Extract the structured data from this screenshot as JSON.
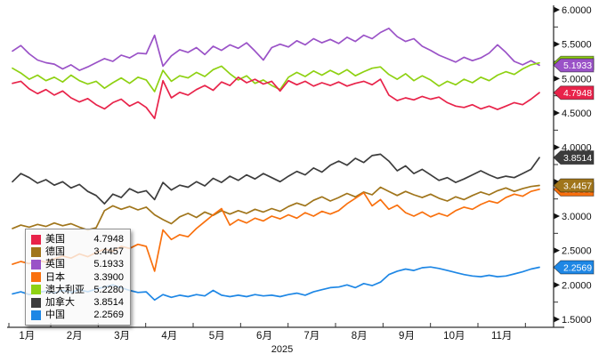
{
  "chart_data": {
    "type": "line",
    "title": "",
    "grid": false,
    "legend_position": "bottom-left",
    "x_axis": {
      "year_label": "2025",
      "month_labels": [
        "1月",
        "2月",
        "3月",
        "4月",
        "5月",
        "6月",
        "7月",
        "8月",
        "9月",
        "10月",
        "11月"
      ]
    },
    "y_axis": {
      "min": 1.5,
      "max": 6.0,
      "major_values": [
        6.0,
        5.5,
        5.0,
        4.5,
        4.0,
        3.5,
        3.0,
        2.5,
        2.0,
        1.5
      ],
      "major_tick_labels": [
        "6.0000",
        "5.5000",
        "5.0000",
        "4.5000",
        "4.0000",
        "3.5000",
        "3.0000",
        "2.5000",
        "2.0000",
        "1.5000"
      ],
      "minor_values": [
        5.75,
        5.25,
        4.75,
        4.25,
        3.75,
        3.25,
        2.75,
        2.25,
        1.75
      ]
    },
    "series": [
      {
        "id": "us",
        "name": "美国",
        "color": "#e8234a",
        "value_label": "4.7948",
        "last_value": 4.7948,
        "values": [
          4.93,
          4.96,
          4.85,
          4.78,
          4.84,
          4.76,
          4.82,
          4.72,
          4.66,
          4.71,
          4.62,
          4.56,
          4.65,
          4.7,
          4.6,
          4.66,
          4.58,
          4.42,
          4.97,
          4.72,
          4.8,
          4.76,
          4.84,
          4.9,
          4.83,
          4.95,
          4.9,
          5.02,
          4.94,
          4.99,
          4.92,
          4.96,
          4.82,
          4.97,
          4.91,
          4.96,
          4.89,
          4.94,
          4.9,
          4.95,
          4.89,
          4.93,
          4.96,
          4.91,
          4.99,
          4.76,
          4.68,
          4.72,
          4.69,
          4.74,
          4.7,
          4.73,
          4.65,
          4.6,
          4.58,
          4.62,
          4.56,
          4.6,
          4.55,
          4.6,
          4.65,
          4.62,
          4.7,
          4.7948
        ]
      },
      {
        "id": "de",
        "name": "德国",
        "color": "#a0751b",
        "value_label": "3.4457",
        "last_value": 3.4457,
        "values": [
          2.82,
          2.87,
          2.84,
          2.88,
          2.85,
          2.9,
          2.86,
          2.89,
          2.84,
          2.8,
          2.83,
          3.08,
          3.15,
          3.1,
          3.14,
          3.09,
          3.13,
          3.02,
          2.95,
          2.89,
          2.99,
          3.04,
          2.98,
          3.06,
          3.01,
          3.08,
          3.03,
          3.08,
          3.04,
          3.1,
          3.06,
          3.11,
          3.07,
          3.14,
          3.19,
          3.15,
          3.23,
          3.28,
          3.22,
          3.27,
          3.33,
          3.28,
          3.35,
          3.31,
          3.42,
          3.36,
          3.3,
          3.36,
          3.31,
          3.27,
          3.32,
          3.26,
          3.22,
          3.28,
          3.24,
          3.3,
          3.35,
          3.31,
          3.37,
          3.41,
          3.36,
          3.4,
          3.43,
          3.4457
        ]
      },
      {
        "id": "uk",
        "name": "英国",
        "color": "#9a52c7",
        "value_label": "5.1933",
        "last_value": 5.1933,
        "values": [
          5.4,
          5.48,
          5.36,
          5.27,
          5.23,
          5.21,
          5.14,
          5.2,
          5.12,
          5.17,
          5.23,
          5.29,
          5.25,
          5.34,
          5.3,
          5.37,
          5.36,
          5.63,
          5.18,
          5.33,
          5.42,
          5.38,
          5.45,
          5.35,
          5.47,
          5.41,
          5.49,
          5.44,
          5.52,
          5.4,
          5.27,
          5.45,
          5.5,
          5.46,
          5.55,
          5.49,
          5.58,
          5.52,
          5.57,
          5.51,
          5.6,
          5.54,
          5.63,
          5.58,
          5.67,
          5.73,
          5.61,
          5.54,
          5.58,
          5.47,
          5.41,
          5.34,
          5.29,
          5.24,
          5.31,
          5.26,
          5.3,
          5.37,
          5.49,
          5.38,
          5.25,
          5.2,
          5.26,
          5.1933
        ]
      },
      {
        "id": "jp",
        "name": "日本",
        "color": "#f9700d",
        "value_label": "3.3900",
        "last_value": 3.39,
        "values": [
          2.3,
          2.34,
          2.31,
          2.36,
          2.33,
          2.38,
          2.42,
          2.39,
          2.45,
          2.41,
          2.47,
          2.52,
          2.49,
          2.56,
          2.53,
          2.59,
          2.56,
          2.2,
          2.8,
          2.66,
          2.73,
          2.7,
          2.82,
          2.92,
          3.02,
          3.11,
          2.87,
          2.95,
          2.9,
          2.97,
          2.93,
          3.0,
          2.96,
          3.02,
          2.97,
          3.05,
          3.0,
          3.07,
          3.03,
          3.08,
          3.18,
          3.26,
          3.34,
          3.15,
          3.24,
          3.1,
          3.16,
          3.05,
          3.0,
          3.06,
          2.99,
          3.04,
          3.0,
          3.08,
          3.13,
          3.1,
          3.17,
          3.22,
          3.19,
          3.27,
          3.32,
          3.29,
          3.36,
          3.39
        ]
      },
      {
        "id": "au",
        "name": "澳大利亚",
        "color": "#8ed112",
        "value_label": "5.2280",
        "last_value": 5.228,
        "values": [
          5.15,
          5.08,
          4.99,
          5.05,
          4.97,
          5.02,
          4.95,
          5.05,
          4.97,
          4.92,
          4.96,
          4.86,
          4.94,
          5.01,
          4.93,
          5.02,
          4.98,
          4.81,
          5.12,
          4.96,
          5.04,
          5.01,
          5.09,
          5.03,
          5.13,
          5.18,
          5.07,
          4.98,
          5.04,
          4.93,
          4.98,
          4.9,
          4.84,
          5.02,
          5.09,
          5.03,
          5.11,
          5.05,
          5.12,
          5.06,
          5.13,
          5.04,
          5.1,
          5.15,
          5.17,
          5.06,
          4.99,
          5.07,
          4.97,
          5.04,
          4.98,
          4.89,
          4.96,
          4.91,
          4.99,
          4.94,
          5.02,
          4.97,
          5.05,
          5.1,
          5.06,
          5.14,
          5.2,
          5.228
        ]
      },
      {
        "id": "ca",
        "name": "加拿大",
        "color": "#3c3c3c",
        "value_label": "3.8514",
        "last_value": 3.8514,
        "values": [
          3.5,
          3.62,
          3.56,
          3.48,
          3.53,
          3.45,
          3.5,
          3.41,
          3.46,
          3.36,
          3.3,
          3.18,
          3.32,
          3.27,
          3.4,
          3.34,
          3.37,
          3.24,
          3.49,
          3.38,
          3.45,
          3.42,
          3.5,
          3.44,
          3.55,
          3.49,
          3.58,
          3.52,
          3.6,
          3.54,
          3.62,
          3.56,
          3.5,
          3.58,
          3.65,
          3.6,
          3.7,
          3.64,
          3.74,
          3.8,
          3.74,
          3.84,
          3.78,
          3.88,
          3.9,
          3.8,
          3.66,
          3.73,
          3.62,
          3.68,
          3.6,
          3.52,
          3.56,
          3.49,
          3.54,
          3.6,
          3.66,
          3.6,
          3.55,
          3.58,
          3.56,
          3.62,
          3.68,
          3.8514
        ]
      },
      {
        "id": "cn",
        "name": "中国",
        "color": "#1e87e5",
        "value_label": "2.2569",
        "last_value": 2.2569,
        "values": [
          1.87,
          1.9,
          1.86,
          1.89,
          1.91,
          1.88,
          1.92,
          1.89,
          1.93,
          1.9,
          1.94,
          1.97,
          2.0,
          1.96,
          1.92,
          1.89,
          1.9,
          1.78,
          1.86,
          1.82,
          1.85,
          1.83,
          1.86,
          1.84,
          1.92,
          1.85,
          1.83,
          1.85,
          1.83,
          1.86,
          1.84,
          1.85,
          1.83,
          1.86,
          1.88,
          1.85,
          1.9,
          1.93,
          1.96,
          1.97,
          2.0,
          1.96,
          2.02,
          1.99,
          2.04,
          2.15,
          2.2,
          2.23,
          2.21,
          2.25,
          2.26,
          2.24,
          2.21,
          2.18,
          2.15,
          2.13,
          2.12,
          2.14,
          2.12,
          2.13,
          2.16,
          2.19,
          2.23,
          2.2569
        ]
      }
    ]
  }
}
